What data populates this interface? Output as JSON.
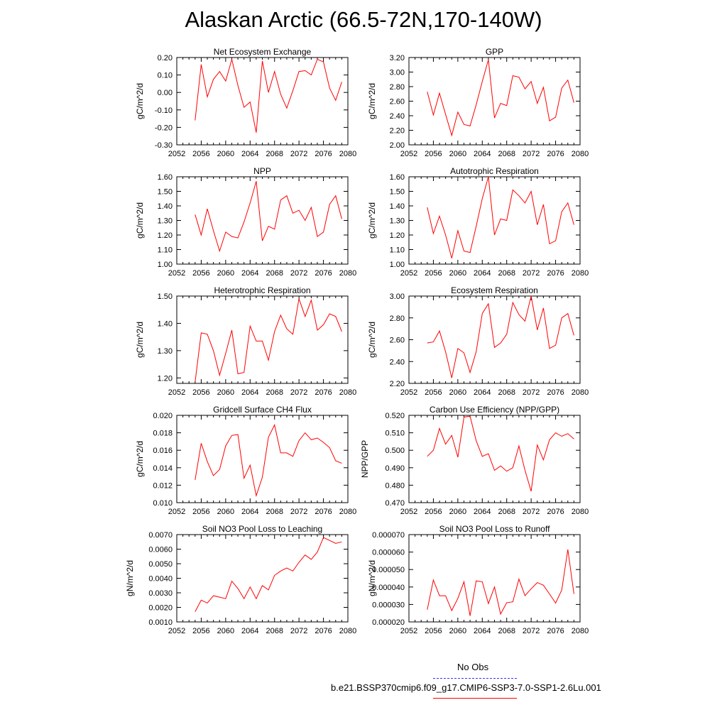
{
  "title": "Alaskan Arctic (66.5-72N,170-140W)",
  "colors": {
    "series": "#ff0000",
    "obs": "#3333ff"
  },
  "legend": {
    "obs_label": "No Obs",
    "model_label": "b.e21.BSSP370cmip6.f09_g17.CMIP6-SSP3-7.0-SSP1-2.6Lu.001"
  },
  "chart_data": [
    {
      "type": "line",
      "title": "Net Ecosystem Exchange",
      "ylabel": "gC/m^2/d",
      "xlim": [
        2052,
        2080
      ],
      "ylim": [
        -0.3,
        0.2
      ],
      "xticks": [
        2052,
        2056,
        2060,
        2064,
        2068,
        2072,
        2076,
        2080
      ],
      "xtick_labels": [
        "2052",
        "2056",
        "2060",
        "2064",
        "2068",
        "2072",
        "2076",
        "2080"
      ],
      "yticks": [
        -0.3,
        -0.2,
        -0.1,
        0.0,
        0.1,
        0.2
      ],
      "ytick_labels": [
        "-0.30",
        "-0.20",
        "-0.10",
        "0.00",
        "0.10",
        "0.20"
      ],
      "x": [
        2055,
        2056,
        2057,
        2058,
        2059,
        2060,
        2061,
        2062,
        2063,
        2064,
        2065,
        2066,
        2067,
        2068,
        2069,
        2070,
        2071,
        2072,
        2073,
        2074,
        2075,
        2076,
        2077,
        2078,
        2079
      ],
      "y": [
        -0.16,
        0.16,
        -0.025,
        0.075,
        0.12,
        0.065,
        0.19,
        0.04,
        -0.085,
        -0.055,
        -0.23,
        0.18,
        0.0,
        0.12,
        -0.01,
        -0.09,
        0.01,
        0.12,
        0.125,
        0.1,
        0.19,
        0.175,
        0.025,
        -0.045,
        0.06
      ]
    },
    {
      "type": "line",
      "title": "GPP",
      "ylabel": "gC/m^2/d",
      "xlim": [
        2052,
        2080
      ],
      "ylim": [
        2.0,
        3.2
      ],
      "xticks": [
        2052,
        2056,
        2060,
        2064,
        2068,
        2072,
        2076,
        2080
      ],
      "xtick_labels": [
        "2052",
        "2056",
        "2060",
        "2064",
        "2068",
        "2072",
        "2076",
        "2080"
      ],
      "yticks": [
        2.0,
        2.2,
        2.4,
        2.6,
        2.8,
        3.0,
        3.2
      ],
      "ytick_labels": [
        "2.00",
        "2.20",
        "2.40",
        "2.60",
        "2.80",
        "3.00",
        "3.20"
      ],
      "x": [
        2055,
        2056,
        2057,
        2058,
        2059,
        2060,
        2061,
        2062,
        2063,
        2064,
        2065,
        2066,
        2067,
        2068,
        2069,
        2070,
        2071,
        2072,
        2073,
        2074,
        2075,
        2076,
        2077,
        2078,
        2079
      ],
      "y": [
        2.73,
        2.41,
        2.71,
        2.42,
        2.13,
        2.45,
        2.28,
        2.26,
        2.55,
        2.87,
        3.17,
        2.37,
        2.57,
        2.54,
        2.95,
        2.93,
        2.77,
        2.87,
        2.57,
        2.79,
        2.33,
        2.38,
        2.78,
        2.89,
        2.58
      ]
    },
    {
      "type": "line",
      "title": "NPP",
      "ylabel": "gC/m^2/d",
      "xlim": [
        2052,
        2080
      ],
      "ylim": [
        1.0,
        1.6
      ],
      "xticks": [
        2052,
        2056,
        2060,
        2064,
        2068,
        2072,
        2076,
        2080
      ],
      "xtick_labels": [
        "2052",
        "2056",
        "2060",
        "2064",
        "2068",
        "2072",
        "2076",
        "2080"
      ],
      "yticks": [
        1.0,
        1.1,
        1.2,
        1.3,
        1.4,
        1.5,
        1.6
      ],
      "ytick_labels": [
        "1.00",
        "1.10",
        "1.20",
        "1.30",
        "1.40",
        "1.50",
        "1.60"
      ],
      "x": [
        2055,
        2056,
        2057,
        2058,
        2059,
        2060,
        2061,
        2062,
        2063,
        2064,
        2065,
        2066,
        2067,
        2068,
        2069,
        2070,
        2071,
        2072,
        2073,
        2074,
        2075,
        2076,
        2077,
        2078,
        2079
      ],
      "y": [
        1.34,
        1.2,
        1.38,
        1.23,
        1.09,
        1.22,
        1.19,
        1.18,
        1.29,
        1.42,
        1.57,
        1.16,
        1.26,
        1.24,
        1.44,
        1.47,
        1.35,
        1.37,
        1.3,
        1.39,
        1.19,
        1.22,
        1.41,
        1.47,
        1.31
      ]
    },
    {
      "type": "line",
      "title": "Autotrophic Respiration",
      "ylabel": "gC/m^2/d",
      "xlim": [
        2052,
        2080
      ],
      "ylim": [
        1.0,
        1.6
      ],
      "xticks": [
        2052,
        2056,
        2060,
        2064,
        2068,
        2072,
        2076,
        2080
      ],
      "xtick_labels": [
        "2052",
        "2056",
        "2060",
        "2064",
        "2068",
        "2072",
        "2076",
        "2080"
      ],
      "yticks": [
        1.0,
        1.1,
        1.2,
        1.3,
        1.4,
        1.5,
        1.6
      ],
      "ytick_labels": [
        "1.00",
        "1.10",
        "1.20",
        "1.30",
        "1.40",
        "1.50",
        "1.60"
      ],
      "x": [
        2055,
        2056,
        2057,
        2058,
        2059,
        2060,
        2061,
        2062,
        2063,
        2064,
        2065,
        2066,
        2067,
        2068,
        2069,
        2070,
        2071,
        2072,
        2073,
        2074,
        2075,
        2076,
        2077,
        2078,
        2079
      ],
      "y": [
        1.39,
        1.21,
        1.33,
        1.2,
        1.04,
        1.23,
        1.09,
        1.08,
        1.26,
        1.45,
        1.6,
        1.2,
        1.31,
        1.3,
        1.51,
        1.47,
        1.42,
        1.5,
        1.27,
        1.41,
        1.14,
        1.16,
        1.36,
        1.42,
        1.27
      ]
    },
    {
      "type": "line",
      "title": "Heterotrophic Respiration",
      "ylabel": "gC/m^2/d",
      "xlim": [
        2052,
        2080
      ],
      "ylim": [
        1.18,
        1.5
      ],
      "xticks": [
        2052,
        2056,
        2060,
        2064,
        2068,
        2072,
        2076,
        2080
      ],
      "xtick_labels": [
        "2052",
        "2056",
        "2060",
        "2064",
        "2068",
        "2072",
        "2076",
        "2080"
      ],
      "yticks": [
        1.2,
        1.3,
        1.4,
        1.5
      ],
      "ytick_labels": [
        "1.20",
        "1.30",
        "1.40",
        "1.50"
      ],
      "x": [
        2055,
        2056,
        2057,
        2058,
        2059,
        2060,
        2061,
        2062,
        2063,
        2064,
        2065,
        2066,
        2067,
        2068,
        2069,
        2070,
        2071,
        2072,
        2073,
        2074,
        2075,
        2076,
        2077,
        2078,
        2079
      ],
      "y": [
        1.185,
        1.365,
        1.36,
        1.3,
        1.21,
        1.29,
        1.375,
        1.215,
        1.22,
        1.39,
        1.335,
        1.335,
        1.265,
        1.37,
        1.43,
        1.38,
        1.36,
        1.49,
        1.425,
        1.485,
        1.375,
        1.395,
        1.435,
        1.425,
        1.37
      ]
    },
    {
      "type": "line",
      "title": "Ecosystem Respiration",
      "ylabel": "gC/m^2/d",
      "xlim": [
        2052,
        2080
      ],
      "ylim": [
        2.2,
        3.0
      ],
      "xticks": [
        2052,
        2056,
        2060,
        2064,
        2068,
        2072,
        2076,
        2080
      ],
      "xtick_labels": [
        "2052",
        "2056",
        "2060",
        "2064",
        "2068",
        "2072",
        "2076",
        "2080"
      ],
      "yticks": [
        2.2,
        2.4,
        2.6,
        2.8,
        3.0
      ],
      "ytick_labels": [
        "2.20",
        "2.40",
        "2.60",
        "2.80",
        "3.00"
      ],
      "x": [
        2055,
        2056,
        2057,
        2058,
        2059,
        2060,
        2061,
        2062,
        2063,
        2064,
        2065,
        2066,
        2067,
        2068,
        2069,
        2070,
        2071,
        2072,
        2073,
        2074,
        2075,
        2076,
        2077,
        2078,
        2079
      ],
      "y": [
        2.57,
        2.58,
        2.68,
        2.49,
        2.25,
        2.52,
        2.48,
        2.3,
        2.49,
        2.84,
        2.93,
        2.53,
        2.57,
        2.65,
        2.94,
        2.83,
        2.77,
        3.0,
        2.69,
        2.89,
        2.52,
        2.55,
        2.8,
        2.84,
        2.64
      ]
    },
    {
      "type": "line",
      "title": "Gridcell Surface CH4 Flux",
      "ylabel": "gC/m^2/d",
      "xlim": [
        2052,
        2080
      ],
      "ylim": [
        0.01,
        0.02
      ],
      "xticks": [
        2052,
        2056,
        2060,
        2064,
        2068,
        2072,
        2076,
        2080
      ],
      "xtick_labels": [
        "2052",
        "2056",
        "2060",
        "2064",
        "2068",
        "2072",
        "2076",
        "2080"
      ],
      "yticks": [
        0.01,
        0.012,
        0.014,
        0.016,
        0.018,
        0.02
      ],
      "ytick_labels": [
        "0.010",
        "0.012",
        "0.014",
        "0.016",
        "0.018",
        "0.020"
      ],
      "x": [
        2055,
        2056,
        2057,
        2058,
        2059,
        2060,
        2061,
        2062,
        2063,
        2064,
        2065,
        2066,
        2067,
        2068,
        2069,
        2070,
        2071,
        2072,
        2073,
        2074,
        2075,
        2076,
        2077,
        2078,
        2079
      ],
      "y": [
        0.0126,
        0.0168,
        0.0147,
        0.0131,
        0.0138,
        0.0165,
        0.0177,
        0.0178,
        0.0128,
        0.0143,
        0.0108,
        0.0129,
        0.0175,
        0.0189,
        0.0157,
        0.0157,
        0.0153,
        0.0171,
        0.018,
        0.0172,
        0.0174,
        0.0169,
        0.0163,
        0.0148,
        0.0145
      ]
    },
    {
      "type": "line",
      "title": "Carbon Use Efficiency (NPP/GPP)",
      "ylabel": "NPP/GPP",
      "xlim": [
        2052,
        2080
      ],
      "ylim": [
        0.47,
        0.52
      ],
      "xticks": [
        2052,
        2056,
        2060,
        2064,
        2068,
        2072,
        2076,
        2080
      ],
      "xtick_labels": [
        "2052",
        "2056",
        "2060",
        "2064",
        "2068",
        "2072",
        "2076",
        "2080"
      ],
      "yticks": [
        0.47,
        0.48,
        0.49,
        0.5,
        0.51,
        0.52
      ],
      "ytick_labels": [
        "0.470",
        "0.480",
        "0.490",
        "0.500",
        "0.510",
        "0.520"
      ],
      "x": [
        2055,
        2056,
        2057,
        2058,
        2059,
        2060,
        2061,
        2062,
        2063,
        2064,
        2065,
        2066,
        2067,
        2068,
        2069,
        2070,
        2071,
        2072,
        2073,
        2074,
        2075,
        2076,
        2077,
        2078,
        2079
      ],
      "y": [
        0.4965,
        0.5,
        0.5125,
        0.5035,
        0.5085,
        0.496,
        0.519,
        0.5195,
        0.5055,
        0.4965,
        0.498,
        0.4885,
        0.491,
        0.488,
        0.49,
        0.5025,
        0.4885,
        0.4765,
        0.503,
        0.4945,
        0.506,
        0.51,
        0.508,
        0.5095,
        0.5065
      ]
    },
    {
      "type": "line",
      "title": "Soil NO3 Pool Loss to Leaching",
      "ylabel": "gN/m^2/d",
      "xlim": [
        2052,
        2080
      ],
      "ylim": [
        0.001,
        0.007
      ],
      "xticks": [
        2052,
        2056,
        2060,
        2064,
        2068,
        2072,
        2076,
        2080
      ],
      "xtick_labels": [
        "2052",
        "2056",
        "2060",
        "2064",
        "2068",
        "2072",
        "2076",
        "2080"
      ],
      "yticks": [
        0.001,
        0.002,
        0.003,
        0.004,
        0.005,
        0.006,
        0.007
      ],
      "ytick_labels": [
        "0.0010",
        "0.0020",
        "0.0030",
        "0.0040",
        "0.0050",
        "0.0060",
        "0.0070"
      ],
      "x": [
        2055,
        2056,
        2057,
        2058,
        2059,
        2060,
        2061,
        2062,
        2063,
        2064,
        2065,
        2066,
        2067,
        2068,
        2069,
        2070,
        2071,
        2072,
        2073,
        2074,
        2075,
        2076,
        2077,
        2078,
        2079
      ],
      "y": [
        0.0017,
        0.0025,
        0.0023,
        0.0028,
        0.0027,
        0.0026,
        0.0038,
        0.0033,
        0.0026,
        0.0034,
        0.0026,
        0.0035,
        0.0032,
        0.0042,
        0.0045,
        0.0047,
        0.0045,
        0.0051,
        0.0056,
        0.0053,
        0.0058,
        0.0068,
        0.0066,
        0.0064,
        0.0065
      ]
    },
    {
      "type": "line",
      "title": "Soil NO3 Pool Loss to Runoff",
      "ylabel": "gN/m^2/d",
      "xlim": [
        2052,
        2080
      ],
      "ylim": [
        2e-05,
        7e-05
      ],
      "xticks": [
        2052,
        2056,
        2060,
        2064,
        2068,
        2072,
        2076,
        2080
      ],
      "xtick_labels": [
        "2052",
        "2056",
        "2060",
        "2064",
        "2068",
        "2072",
        "2076",
        "2080"
      ],
      "yticks": [
        2e-05,
        3e-05,
        4e-05,
        5e-05,
        6e-05,
        7e-05
      ],
      "ytick_labels": [
        "0.000020",
        "0.000030",
        "0.000040",
        "0.000050",
        "0.000060",
        "0.000070"
      ],
      "x": [
        2055,
        2056,
        2057,
        2058,
        2059,
        2060,
        2061,
        2062,
        2063,
        2064,
        2065,
        2066,
        2067,
        2068,
        2069,
        2070,
        2071,
        2072,
        2073,
        2074,
        2075,
        2076,
        2077,
        2078,
        2079
      ],
      "y": [
        2.7e-05,
        4.4e-05,
        3.5e-05,
        3.5e-05,
        2.65e-05,
        3.35e-05,
        4.3e-05,
        2.35e-05,
        4.35e-05,
        4.3e-05,
        3.05e-05,
        4e-05,
        2.45e-05,
        3.1e-05,
        3.15e-05,
        4.45e-05,
        3.5e-05,
        3.9e-05,
        4.25e-05,
        4.1e-05,
        3.6e-05,
        3.08e-05,
        3.82e-05,
        6.15e-05,
        3.6e-05
      ]
    }
  ]
}
